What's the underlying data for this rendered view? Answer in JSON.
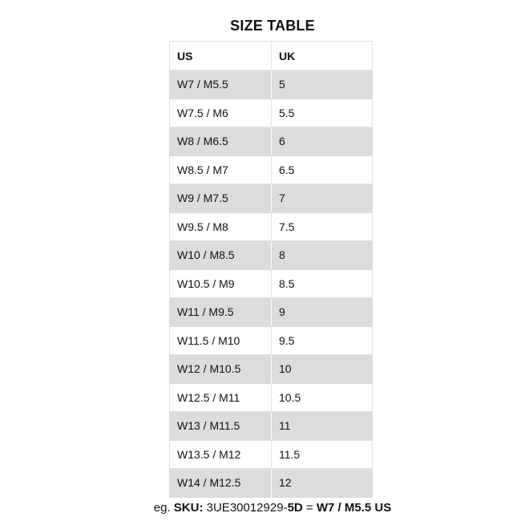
{
  "title": "SIZE TABLE",
  "headers": [
    "US",
    "UK"
  ],
  "rows": [
    [
      "W7 / M5.5",
      "5"
    ],
    [
      "W7.5 / M6",
      "5.5"
    ],
    [
      "W8 / M6.5",
      "6"
    ],
    [
      "W8.5 / M7",
      "6.5"
    ],
    [
      "W9 / M7.5",
      "7"
    ],
    [
      "W9.5 / M8",
      "7.5"
    ],
    [
      "W10 / M8.5",
      "8"
    ],
    [
      "W10.5 / M9",
      "8.5"
    ],
    [
      "W11 / M9.5",
      "9"
    ],
    [
      "W11.5 / M10",
      "9.5"
    ],
    [
      "W12 / M10.5",
      "10"
    ],
    [
      "W12.5 / M11",
      "10.5"
    ],
    [
      "W13 / M11.5",
      "11"
    ],
    [
      "W13.5 / M12",
      "11.5"
    ],
    [
      "W14 / M12.5",
      "12"
    ]
  ],
  "note": {
    "prefix": "eg. ",
    "sku_label": "SKU:",
    "sku_code": " 3UE30012929-",
    "sku_suffix": "5D",
    "equals": " = ",
    "result": "W7 / M5.5 US"
  },
  "colors": {
    "stripe": "#dcdcdc",
    "border": "#e2e2e2"
  }
}
